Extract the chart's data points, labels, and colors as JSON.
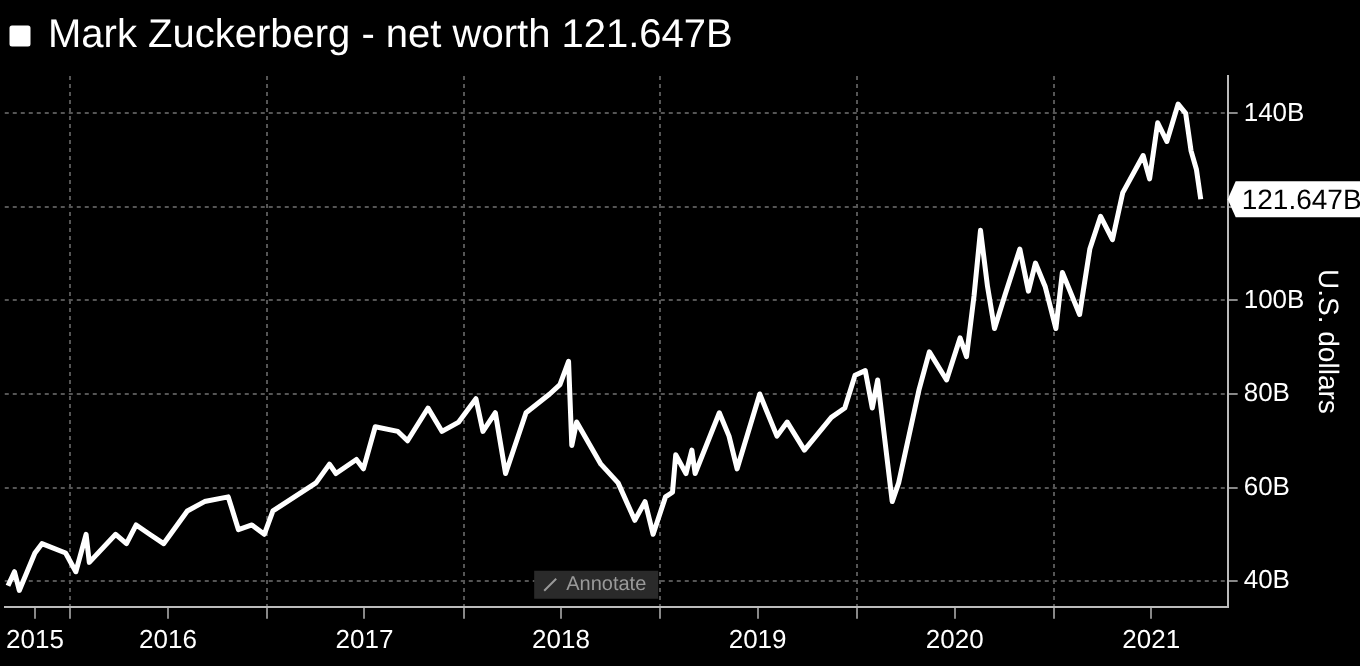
{
  "chart_data": {
    "type": "line",
    "series": [
      {
        "name": "Mark Zuckerberg - net worth 121.647B",
        "color": "#ffffff",
        "values": [
          39,
          42,
          38,
          46,
          48,
          46,
          42,
          50,
          44,
          50,
          48,
          52,
          50,
          48,
          55,
          57,
          58,
          51,
          52,
          50,
          55,
          61,
          65,
          63,
          66,
          64,
          73,
          72,
          70,
          77,
          72,
          74,
          79,
          72,
          76,
          63,
          76,
          80,
          82,
          87,
          69,
          74,
          65,
          61,
          53,
          57,
          50,
          58,
          59,
          67,
          63,
          68,
          63,
          76,
          71,
          64,
          80,
          71,
          74,
          68,
          75,
          77,
          84,
          85,
          77,
          83,
          57,
          61,
          81,
          89,
          83,
          92,
          88,
          101,
          115,
          103,
          94,
          101,
          111,
          102,
          108,
          103,
          94,
          106,
          97,
          111,
          118,
          113,
          123,
          131,
          126,
          138,
          134,
          142,
          140,
          132,
          128,
          121.647
        ]
      }
    ],
    "x": [
      "2015-09-08",
      "2015-09-20",
      "2015-09-29",
      "2015-10-28",
      "2015-11-10",
      "2015-12-24",
      "2016-01-12",
      "2016-01-31",
      "2016-02-06",
      "2016-03-26",
      "2016-04-15",
      "2016-05-03",
      "2016-05-28",
      "2016-06-23",
      "2016-08-06",
      "2016-09-07",
      "2016-10-21",
      "2016-11-09",
      "2016-12-04",
      "2016-12-27",
      "2017-01-12",
      "2017-04-02",
      "2017-04-27",
      "2017-05-09",
      "2017-06-16",
      "2017-06-29",
      "2017-07-21",
      "2017-09-01",
      "2017-09-19",
      "2017-10-27",
      "2017-11-22",
      "2017-12-23",
      "2018-01-24",
      "2018-02-06",
      "2018-03-01",
      "2018-03-20",
      "2018-04-27",
      "2018-06-10",
      "2018-06-29",
      "2018-07-15",
      "2018-07-21",
      "2018-07-30",
      "2018-09-13",
      "2018-10-15",
      "2018-11-15",
      "2018-12-04",
      "2018-12-19",
      "2019-01-11",
      "2019-01-24",
      "2019-01-30",
      "2019-02-18",
      "2019-03-01",
      "2019-03-07",
      "2019-04-21",
      "2019-05-09",
      "2019-05-24",
      "2019-07-05",
      "2019-08-06",
      "2019-08-25",
      "2019-09-26",
      "2019-11-15",
      "2019-12-10",
      "2019-12-29",
      "2020-01-17",
      "2020-01-30",
      "2020-02-09",
      "2020-03-07",
      "2020-03-19",
      "2020-04-26",
      "2020-05-15",
      "2020-06-16",
      "2020-07-11",
      "2020-07-23",
      "2020-08-06",
      "2020-08-18",
      "2020-08-31",
      "2020-09-13",
      "2020-10-02",
      "2020-10-30",
      "2020-11-15",
      "2020-11-28",
      "2020-12-16",
      "2021-01-05",
      "2021-01-17",
      "2021-02-18",
      "2021-03-09",
      "2021-03-29",
      "2021-04-20",
      "2021-05-09",
      "2021-06-16",
      "2021-06-28",
      "2021-07-13",
      "2021-07-30",
      "2021-08-20",
      "2021-09-03",
      "2021-09-13",
      "2021-09-23",
      "2021-10-01"
    ],
    "xlim": [
      "2015-09-02",
      "2021-11-20"
    ],
    "xticks": [
      {
        "value": "2015-10-28",
        "label": "2015"
      },
      {
        "value": "2016-01-01",
        "label": null
      },
      {
        "value": "2016-07-01",
        "label": "2016"
      },
      {
        "value": "2017-01-01",
        "label": null
      },
      {
        "value": "2017-07-01",
        "label": "2017"
      },
      {
        "value": "2018-01-01",
        "label": null
      },
      {
        "value": "2018-07-01",
        "label": "2018"
      },
      {
        "value": "2019-01-01",
        "label": null
      },
      {
        "value": "2019-07-01",
        "label": "2019"
      },
      {
        "value": "2020-01-01",
        "label": null
      },
      {
        "value": "2020-07-01",
        "label": "2020"
      },
      {
        "value": "2021-01-01",
        "label": null
      },
      {
        "value": "2021-07-01",
        "label": "2021"
      }
    ],
    "ylim": [
      34.5,
      148
    ],
    "yticks": [
      {
        "value": 40,
        "label": "40B"
      },
      {
        "value": 60,
        "label": "60B"
      },
      {
        "value": 80,
        "label": "80B"
      },
      {
        "value": 100,
        "label": "100B"
      },
      {
        "value": 120,
        "label": null
      },
      {
        "value": 140,
        "label": "140B"
      }
    ],
    "ylabel": "U.S. dollars",
    "grid": true,
    "legend": "top left",
    "marker": "none",
    "annotations": [
      {
        "text": "121.647B",
        "x": "2021-10-01",
        "y": 121.647
      },
      "Annotate"
    ]
  }
}
